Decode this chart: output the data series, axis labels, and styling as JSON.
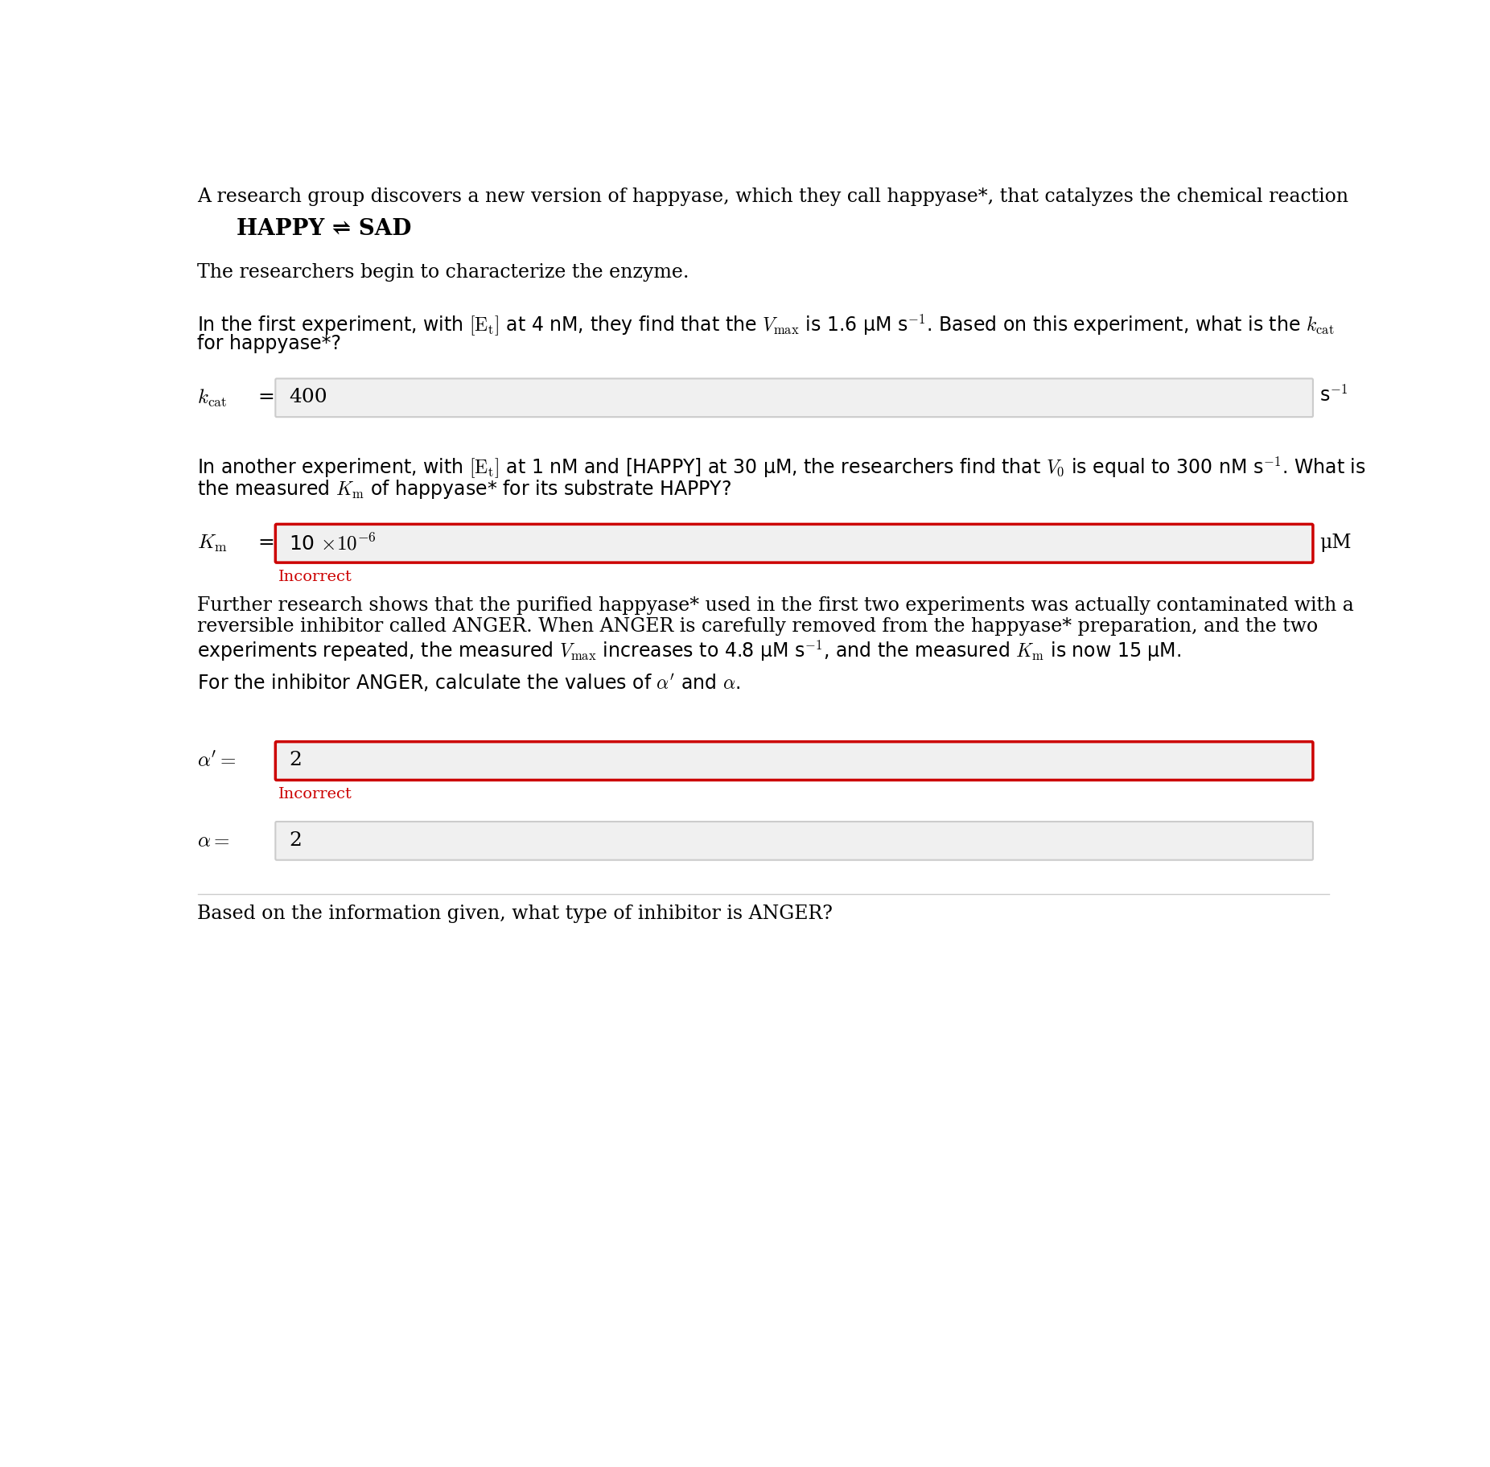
{
  "bg_color": "#ffffff",
  "text_color": "#000000",
  "red_color": "#cc0000",
  "gray_box_color": "#f0f0f0",
  "gray_box_edge": "#cccccc",
  "red_box_edge": "#cc0000",
  "line1": "A research group discovers a new version of happyase, which they call happyase*, that catalyzes the chemical reaction",
  "reaction": "HAPPY ⇌ SAD",
  "line2": "The researchers begin to characterize the enzyme.",
  "kcat_value": "400",
  "kcat_unit": "s",
  "kcat_unit_sup": "−1",
  "km_value_text": "10 ×10",
  "km_value_sup": "−6",
  "km_unit": "μM",
  "km_incorrect": "Incorrect",
  "para3a": "Further research shows that the purified happyase* used in the first two experiments was actually contaminated with a",
  "para3b": "reversible inhibitor called ANGER. When ANGER is carefully removed from the happyase* preparation, and the two",
  "alpha_prime_value": "2",
  "alpha_prime_incorrect": "Incorrect",
  "alpha_value": "2",
  "footer": "Based on the information given, what type of inhibitor is ANGER?"
}
